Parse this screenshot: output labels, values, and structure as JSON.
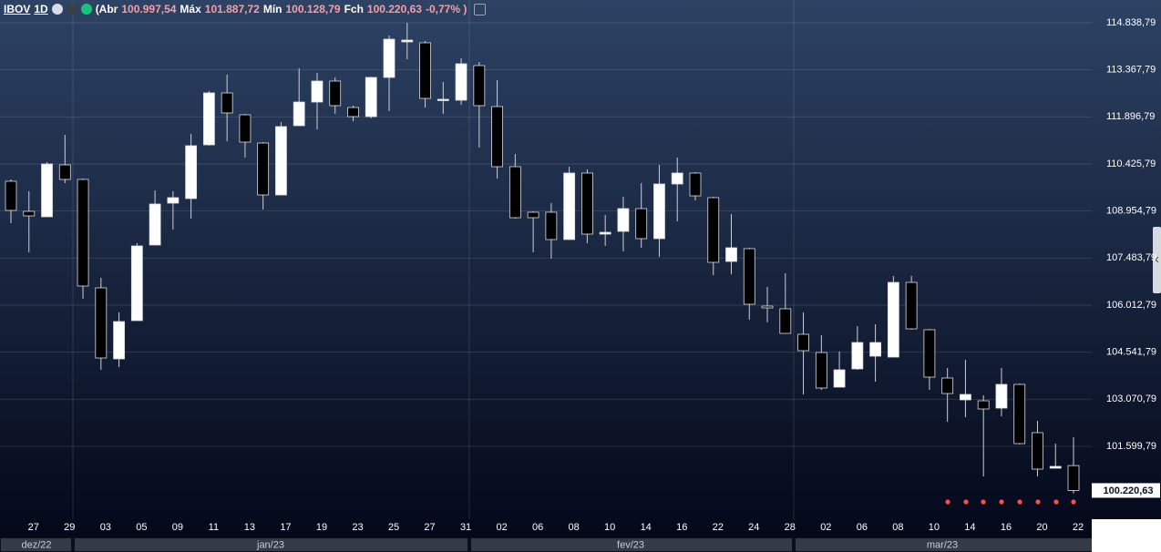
{
  "header": {
    "symbol": "IBOV",
    "interval": "1D",
    "items": [
      {
        "label": "(Abr",
        "value": "100.997,54"
      },
      {
        "label": "Máx",
        "value": "101.887,72"
      },
      {
        "label": "Mín",
        "value": "100.128,79"
      },
      {
        "label": "Fch",
        "value": "100.220,63"
      }
    ],
    "change": "-0,77% )"
  },
  "chart_data": {
    "type": "candlestick",
    "categories": [
      null,
      "27",
      null,
      "29",
      null,
      "03",
      null,
      "05",
      null,
      "09",
      null,
      "11",
      null,
      "13",
      null,
      "17",
      null,
      "19",
      null,
      "23",
      null,
      "25",
      null,
      "27",
      null,
      "31",
      null,
      "02",
      null,
      "06",
      null,
      "08",
      null,
      "10",
      null,
      "14",
      null,
      "16",
      null,
      "22",
      null,
      "24",
      null,
      "28",
      null,
      "02",
      null,
      "06",
      null,
      "08",
      null,
      "10",
      null,
      "14",
      null,
      "16",
      null,
      "20",
      null,
      "22"
    ],
    "months": [
      "dez/22",
      "jan/23",
      "fev/23",
      "mar/23"
    ],
    "open": [
      109885,
      108945,
      108774,
      110397,
      109942,
      106554,
      104333,
      105529,
      107892,
      109201,
      109344,
      111023,
      112646,
      111963,
      111080,
      109457,
      111621,
      112361,
      113016,
      112190,
      111906,
      113130,
      114240,
      114212,
      112418,
      112418,
      113500,
      112219,
      110340,
      108917,
      108917,
      108063,
      110141,
      108233,
      108319,
      109030,
      108091,
      109799,
      110141,
      109372,
      107379,
      107778,
      105984,
      105899,
      105102,
      104532,
      103450,
      104020,
      104418,
      104390,
      106724,
      105244,
      103735,
      103052,
      103023,
      102795,
      103536,
      102027,
      100916,
      100997.54
    ],
    "high": [
      109942,
      109572,
      110482,
      111336,
      109970,
      106867,
      105785,
      107949,
      109600,
      109572,
      111365,
      112703,
      113216,
      111991,
      111109,
      111735,
      113415,
      113272,
      113130,
      112248,
      113150,
      114440,
      114838,
      114269,
      112988,
      113728,
      113614,
      113045,
      110739,
      108945,
      109201,
      110340,
      110255,
      108831,
      109401,
      109828,
      110397,
      110625,
      110169,
      109401,
      108860,
      107806,
      106582,
      107009,
      105785,
      105073,
      104561,
      105358,
      105415,
      106924,
      106924,
      105270,
      104048,
      104304,
      103194,
      104048,
      103560,
      102397,
      101685,
      101887.72
    ],
    "low": [
      108575,
      107664,
      108774,
      109828,
      106212,
      103991,
      104077,
      105529,
      107892,
      108376,
      108717,
      110995,
      111137,
      110625,
      109002,
      109457,
      111621,
      111507,
      111991,
      111764,
      111849,
      112077,
      113699,
      112190,
      111991,
      112276,
      110938,
      109970,
      108717,
      107664,
      107465,
      108063,
      107949,
      107863,
      107692,
      107806,
      107522,
      108632,
      109287,
      106952,
      106981,
      105557,
      105472,
      105130,
      103222,
      103365,
      103450,
      103991,
      103621,
      104390,
      105244,
      103365,
      102368,
      102511,
      100660,
      102539,
      101660,
      100660,
      100916,
      100128.79
    ],
    "close": [
      108974,
      108803,
      110425,
      109942,
      106610,
      104361,
      105500,
      107863,
      109173,
      109372,
      110995,
      112646,
      112020,
      111109,
      109457,
      111593,
      112361,
      113016,
      112248,
      111906,
      113130,
      114326,
      114297,
      112475,
      112447,
      113557,
      112248,
      110340,
      108746,
      108746,
      108063,
      110141,
      108233,
      108290,
      109030,
      108091,
      109799,
      110141,
      109429,
      107351,
      107806,
      106041,
      105927,
      105130,
      104589,
      103422,
      103991,
      104845,
      104845,
      106724,
      105272,
      103763,
      103251,
      103222,
      102767,
      103536,
      101685,
      100888,
      100973,
      100220.63
    ],
    "last_price_label": "100.220,63",
    "up_color": "#ffffff",
    "down_color": "#000000",
    "wick_color": "#c9d0da",
    "ylim": [
      99322,
      115550
    ],
    "yticks": [
      {
        "value": 114838.79,
        "label": "114.838,79"
      },
      {
        "value": 113367.79,
        "label": "113.367,79"
      },
      {
        "value": 111896.79,
        "label": "111.896,79"
      },
      {
        "value": 110425.79,
        "label": "110.425,79"
      },
      {
        "value": 108954.79,
        "label": "108.954,79"
      },
      {
        "value": 107483.79,
        "label": "107.483,79"
      },
      {
        "value": 106012.79,
        "label": "106.012,79"
      },
      {
        "value": 104541.79,
        "label": "104.541,79"
      },
      {
        "value": 103070.79,
        "label": "103.070,79"
      },
      {
        "value": 101599.79,
        "label": "101.599,79"
      }
    ],
    "grid": true
  }
}
